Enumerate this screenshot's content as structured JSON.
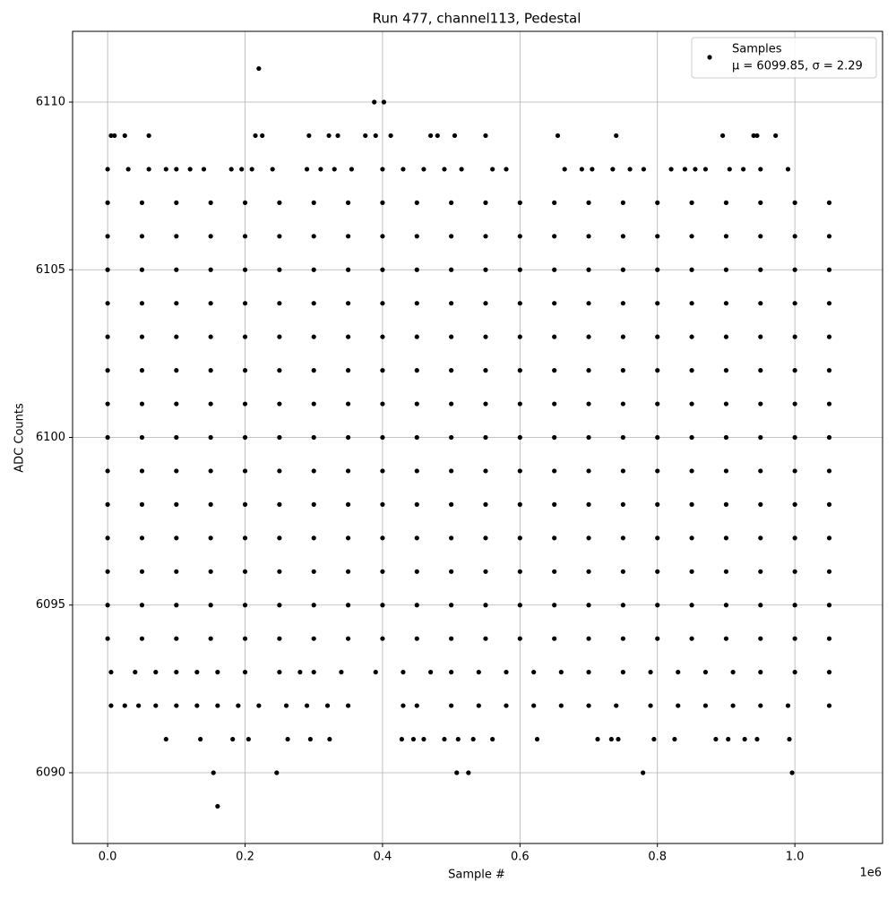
{
  "chart_data": {
    "type": "scatter",
    "title": "Run 477, channel113, Pedestal",
    "xlabel": "Sample #",
    "ylabel": "ADC Counts",
    "x_offset_label": "1e6",
    "xlim": [
      -51000,
      1127600
    ],
    "ylim": [
      6087.89,
      6112.11
    ],
    "xticks": [
      {
        "value": 0,
        "label": "0.0"
      },
      {
        "value": 200000,
        "label": "0.2"
      },
      {
        "value": 400000,
        "label": "0.4"
      },
      {
        "value": 600000,
        "label": "0.6"
      },
      {
        "value": 800000,
        "label": "0.8"
      },
      {
        "value": 1000000,
        "label": "1.0"
      }
    ],
    "yticks": [
      6090,
      6095,
      6100,
      6105,
      6110
    ],
    "grid": true,
    "legend": "upper right",
    "legend_note": "μ = 6099.85, σ = 2.29",
    "series": [
      {
        "name": "Samples",
        "color": "#000000",
        "x": [
          0,
          50000,
          100000,
          150000,
          200000,
          250000,
          300000,
          350000,
          400000,
          450000,
          500000,
          550000,
          600000,
          650000,
          700000,
          750000,
          800000,
          850000,
          900000,
          950000,
          1000000,
          1050000,
          0,
          50000,
          100000,
          150000,
          200000,
          250000,
          300000,
          350000,
          400000,
          450000,
          500000,
          550000,
          600000,
          650000,
          700000,
          750000,
          800000,
          850000,
          900000,
          950000,
          1000000,
          1050000,
          0,
          50000,
          100000,
          150000,
          200000,
          250000,
          300000,
          350000,
          400000,
          450000,
          500000,
          550000,
          600000,
          650000,
          700000,
          750000,
          800000,
          850000,
          900000,
          950000,
          1000000,
          1050000,
          0,
          50000,
          100000,
          150000,
          200000,
          250000,
          300000,
          350000,
          400000,
          450000,
          500000,
          550000,
          600000,
          650000,
          700000,
          750000,
          800000,
          850000,
          900000,
          950000,
          1000000,
          1050000,
          0,
          50000,
          100000,
          150000,
          200000,
          250000,
          300000,
          350000,
          400000,
          450000,
          500000,
          550000,
          600000,
          650000,
          700000,
          750000,
          800000,
          850000,
          900000,
          950000,
          1000000,
          1050000,
          0,
          50000,
          100000,
          150000,
          200000,
          250000,
          300000,
          350000,
          400000,
          450000,
          500000,
          550000,
          600000,
          650000,
          700000,
          750000,
          800000,
          850000,
          900000,
          950000,
          1000000,
          1050000,
          0,
          50000,
          100000,
          150000,
          200000,
          250000,
          300000,
          350000,
          400000,
          450000,
          500000,
          550000,
          600000,
          650000,
          700000,
          750000,
          800000,
          850000,
          900000,
          950000,
          1000000,
          1050000,
          0,
          50000,
          100000,
          150000,
          200000,
          250000,
          300000,
          350000,
          400000,
          450000,
          500000,
          550000,
          600000,
          650000,
          700000,
          750000,
          800000,
          850000,
          900000,
          950000,
          1000000,
          1050000,
          0,
          50000,
          100000,
          150000,
          200000,
          250000,
          300000,
          350000,
          400000,
          450000,
          500000,
          550000,
          600000,
          650000,
          700000,
          750000,
          800000,
          850000,
          900000,
          950000,
          1000000,
          1050000,
          0,
          50000,
          100000,
          150000,
          200000,
          250000,
          300000,
          350000,
          400000,
          450000,
          500000,
          550000,
          600000,
          650000,
          700000,
          750000,
          800000,
          850000,
          900000,
          950000,
          1000000,
          1050000,
          0,
          50000,
          100000,
          150000,
          200000,
          250000,
          300000,
          350000,
          400000,
          450000,
          500000,
          550000,
          600000,
          650000,
          700000,
          750000,
          800000,
          850000,
          900000,
          950000,
          1000000,
          1050000,
          0,
          50000,
          100000,
          150000,
          200000,
          250000,
          300000,
          350000,
          400000,
          450000,
          500000,
          550000,
          600000,
          650000,
          700000,
          750000,
          800000,
          850000,
          900000,
          950000,
          1000000,
          1050000,
          0,
          50000,
          100000,
          150000,
          200000,
          250000,
          300000,
          350000,
          400000,
          450000,
          500000,
          550000,
          600000,
          650000,
          700000,
          750000,
          800000,
          850000,
          900000,
          950000,
          1000000,
          1050000,
          0,
          50000,
          100000,
          150000,
          200000,
          250000,
          300000,
          350000,
          400000,
          450000,
          500000,
          550000,
          600000,
          650000,
          700000,
          750000,
          800000,
          850000,
          900000,
          950000,
          1000000,
          1050000,
          220000,
          388000,
          402000,
          5000,
          10000,
          25000,
          60000,
          215000,
          225000,
          293000,
          322000,
          335000,
          375000,
          390000,
          412000,
          470000,
          480000,
          505000,
          550000,
          655000,
          740000,
          895000,
          940000,
          945000,
          972000,
          0,
          30000,
          60000,
          85000,
          100000,
          120000,
          140000,
          180000,
          195000,
          210000,
          240000,
          290000,
          310000,
          330000,
          355000,
          400000,
          430000,
          460000,
          490000,
          515000,
          560000,
          580000,
          665000,
          690000,
          705000,
          735000,
          760000,
          780000,
          820000,
          840000,
          855000,
          870000,
          905000,
          925000,
          950000,
          990000,
          5000,
          40000,
          70000,
          100000,
          130000,
          160000,
          200000,
          250000,
          280000,
          300000,
          340000,
          390000,
          430000,
          470000,
          500000,
          540000,
          580000,
          620000,
          660000,
          700000,
          750000,
          790000,
          830000,
          870000,
          910000,
          950000,
          1000000,
          1050000,
          5000,
          25000,
          45000,
          70000,
          100000,
          130000,
          160000,
          190000,
          220000,
          260000,
          290000,
          320000,
          350000,
          430000,
          450000,
          500000,
          540000,
          580000,
          620000,
          660000,
          700000,
          740000,
          790000,
          830000,
          870000,
          910000,
          950000,
          990000,
          1050000,
          85000,
          135000,
          182000,
          205000,
          262000,
          295000,
          323000,
          428000,
          445000,
          460000,
          490000,
          510000,
          532000,
          560000,
          625000,
          713000,
          733000,
          743000,
          795000,
          825000,
          885000,
          903000,
          927000,
          945000,
          992000,
          154000,
          246000,
          508000,
          525000,
          779000,
          996000,
          160000
        ],
        "values": [
          6094,
          6094,
          6094,
          6094,
          6094,
          6094,
          6094,
          6094,
          6094,
          6094,
          6094,
          6094,
          6094,
          6094,
          6094,
          6094,
          6094,
          6094,
          6094,
          6094,
          6094,
          6094,
          6095,
          6095,
          6095,
          6095,
          6095,
          6095,
          6095,
          6095,
          6095,
          6095,
          6095,
          6095,
          6095,
          6095,
          6095,
          6095,
          6095,
          6095,
          6095,
          6095,
          6095,
          6095,
          6096,
          6096,
          6096,
          6096,
          6096,
          6096,
          6096,
          6096,
          6096,
          6096,
          6096,
          6096,
          6096,
          6096,
          6096,
          6096,
          6096,
          6096,
          6096,
          6096,
          6096,
          6096,
          6097,
          6097,
          6097,
          6097,
          6097,
          6097,
          6097,
          6097,
          6097,
          6097,
          6097,
          6097,
          6097,
          6097,
          6097,
          6097,
          6097,
          6097,
          6097,
          6097,
          6097,
          6097,
          6098,
          6098,
          6098,
          6098,
          6098,
          6098,
          6098,
          6098,
          6098,
          6098,
          6098,
          6098,
          6098,
          6098,
          6098,
          6098,
          6098,
          6098,
          6098,
          6098,
          6098,
          6098,
          6099,
          6099,
          6099,
          6099,
          6099,
          6099,
          6099,
          6099,
          6099,
          6099,
          6099,
          6099,
          6099,
          6099,
          6099,
          6099,
          6099,
          6099,
          6099,
          6099,
          6099,
          6099,
          6100,
          6100,
          6100,
          6100,
          6100,
          6100,
          6100,
          6100,
          6100,
          6100,
          6100,
          6100,
          6100,
          6100,
          6100,
          6100,
          6100,
          6100,
          6100,
          6100,
          6100,
          6100,
          6101,
          6101,
          6101,
          6101,
          6101,
          6101,
          6101,
          6101,
          6101,
          6101,
          6101,
          6101,
          6101,
          6101,
          6101,
          6101,
          6101,
          6101,
          6101,
          6101,
          6101,
          6101,
          6102,
          6102,
          6102,
          6102,
          6102,
          6102,
          6102,
          6102,
          6102,
          6102,
          6102,
          6102,
          6102,
          6102,
          6102,
          6102,
          6102,
          6102,
          6102,
          6102,
          6102,
          6102,
          6103,
          6103,
          6103,
          6103,
          6103,
          6103,
          6103,
          6103,
          6103,
          6103,
          6103,
          6103,
          6103,
          6103,
          6103,
          6103,
          6103,
          6103,
          6103,
          6103,
          6103,
          6103,
          6104,
          6104,
          6104,
          6104,
          6104,
          6104,
          6104,
          6104,
          6104,
          6104,
          6104,
          6104,
          6104,
          6104,
          6104,
          6104,
          6104,
          6104,
          6104,
          6104,
          6104,
          6104,
          6105,
          6105,
          6105,
          6105,
          6105,
          6105,
          6105,
          6105,
          6105,
          6105,
          6105,
          6105,
          6105,
          6105,
          6105,
          6105,
          6105,
          6105,
          6105,
          6105,
          6105,
          6105,
          6106,
          6106,
          6106,
          6106,
          6106,
          6106,
          6106,
          6106,
          6106,
          6106,
          6106,
          6106,
          6106,
          6106,
          6106,
          6106,
          6106,
          6106,
          6106,
          6106,
          6106,
          6106,
          6107,
          6107,
          6107,
          6107,
          6107,
          6107,
          6107,
          6107,
          6107,
          6107,
          6107,
          6107,
          6107,
          6107,
          6107,
          6107,
          6107,
          6107,
          6107,
          6107,
          6107,
          6107,
          6111,
          6110,
          6110,
          6109,
          6109,
          6109,
          6109,
          6109,
          6109,
          6109,
          6109,
          6109,
          6109,
          6109,
          6109,
          6109,
          6109,
          6109,
          6109,
          6109,
          6109,
          6109,
          6109,
          6109,
          6109,
          6108,
          6108,
          6108,
          6108,
          6108,
          6108,
          6108,
          6108,
          6108,
          6108,
          6108,
          6108,
          6108,
          6108,
          6108,
          6108,
          6108,
          6108,
          6108,
          6108,
          6108,
          6108,
          6108,
          6108,
          6108,
          6108,
          6108,
          6108,
          6108,
          6108,
          6108,
          6108,
          6108,
          6108,
          6108,
          6108,
          6093,
          6093,
          6093,
          6093,
          6093,
          6093,
          6093,
          6093,
          6093,
          6093,
          6093,
          6093,
          6093,
          6093,
          6093,
          6093,
          6093,
          6093,
          6093,
          6093,
          6093,
          6093,
          6093,
          6093,
          6093,
          6093,
          6093,
          6093,
          6092,
          6092,
          6092,
          6092,
          6092,
          6092,
          6092,
          6092,
          6092,
          6092,
          6092,
          6092,
          6092,
          6092,
          6092,
          6092,
          6092,
          6092,
          6092,
          6092,
          6092,
          6092,
          6092,
          6092,
          6092,
          6092,
          6092,
          6092,
          6092,
          6091,
          6091,
          6091,
          6091,
          6091,
          6091,
          6091,
          6091,
          6091,
          6091,
          6091,
          6091,
          6091,
          6091,
          6091,
          6091,
          6091,
          6091,
          6091,
          6091,
          6091,
          6091,
          6091,
          6091,
          6091,
          6090,
          6090,
          6090,
          6090,
          6090,
          6090,
          6089
        ]
      }
    ]
  }
}
